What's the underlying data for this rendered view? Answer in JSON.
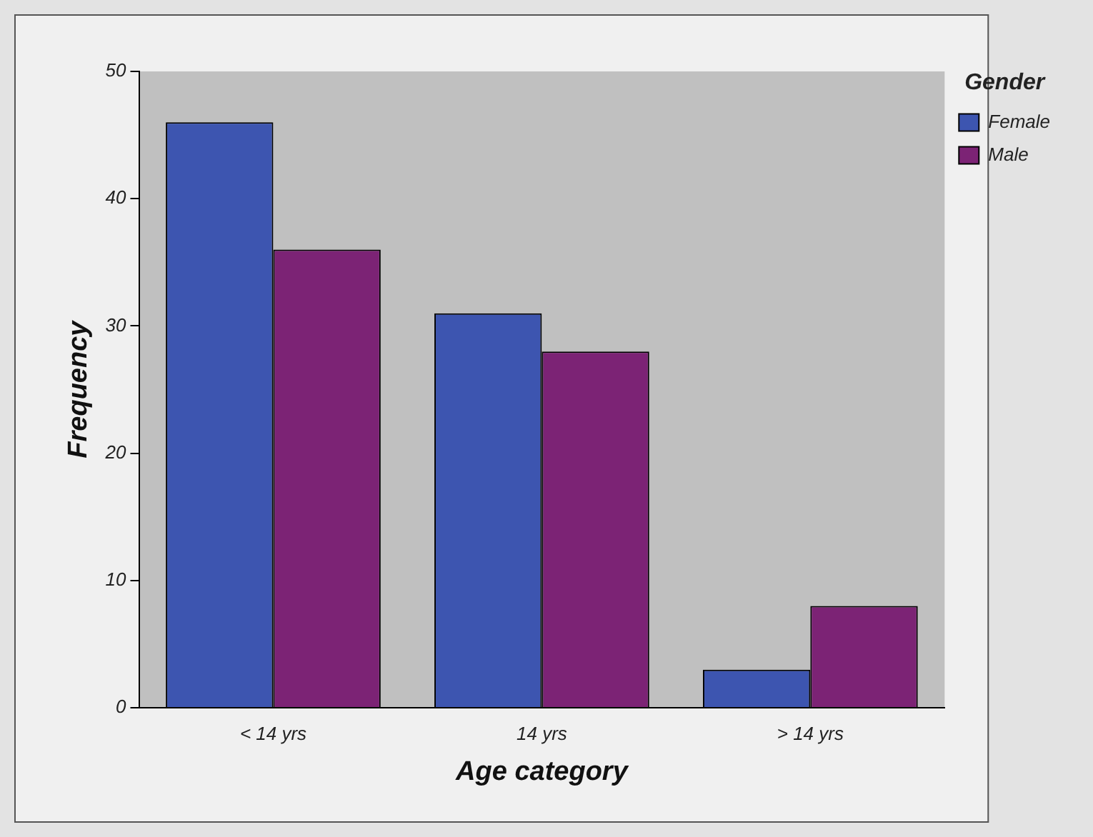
{
  "chart_data": {
    "type": "bar",
    "xlabel": "Age category",
    "ylabel": "Frequency",
    "legend_title": "Gender",
    "categories": [
      "< 14 yrs",
      "14 yrs",
      "> 14 yrs"
    ],
    "series": [
      {
        "name": "Female",
        "color": "#3d55b0",
        "values": [
          46,
          31,
          3
        ]
      },
      {
        "name": "Male",
        "color": "#7c2375",
        "values": [
          36,
          28,
          8
        ]
      }
    ],
    "ylim": [
      0,
      50
    ],
    "yticks": [
      0,
      10,
      20,
      30,
      40,
      50
    ],
    "grid": false,
    "legend": "top right"
  }
}
